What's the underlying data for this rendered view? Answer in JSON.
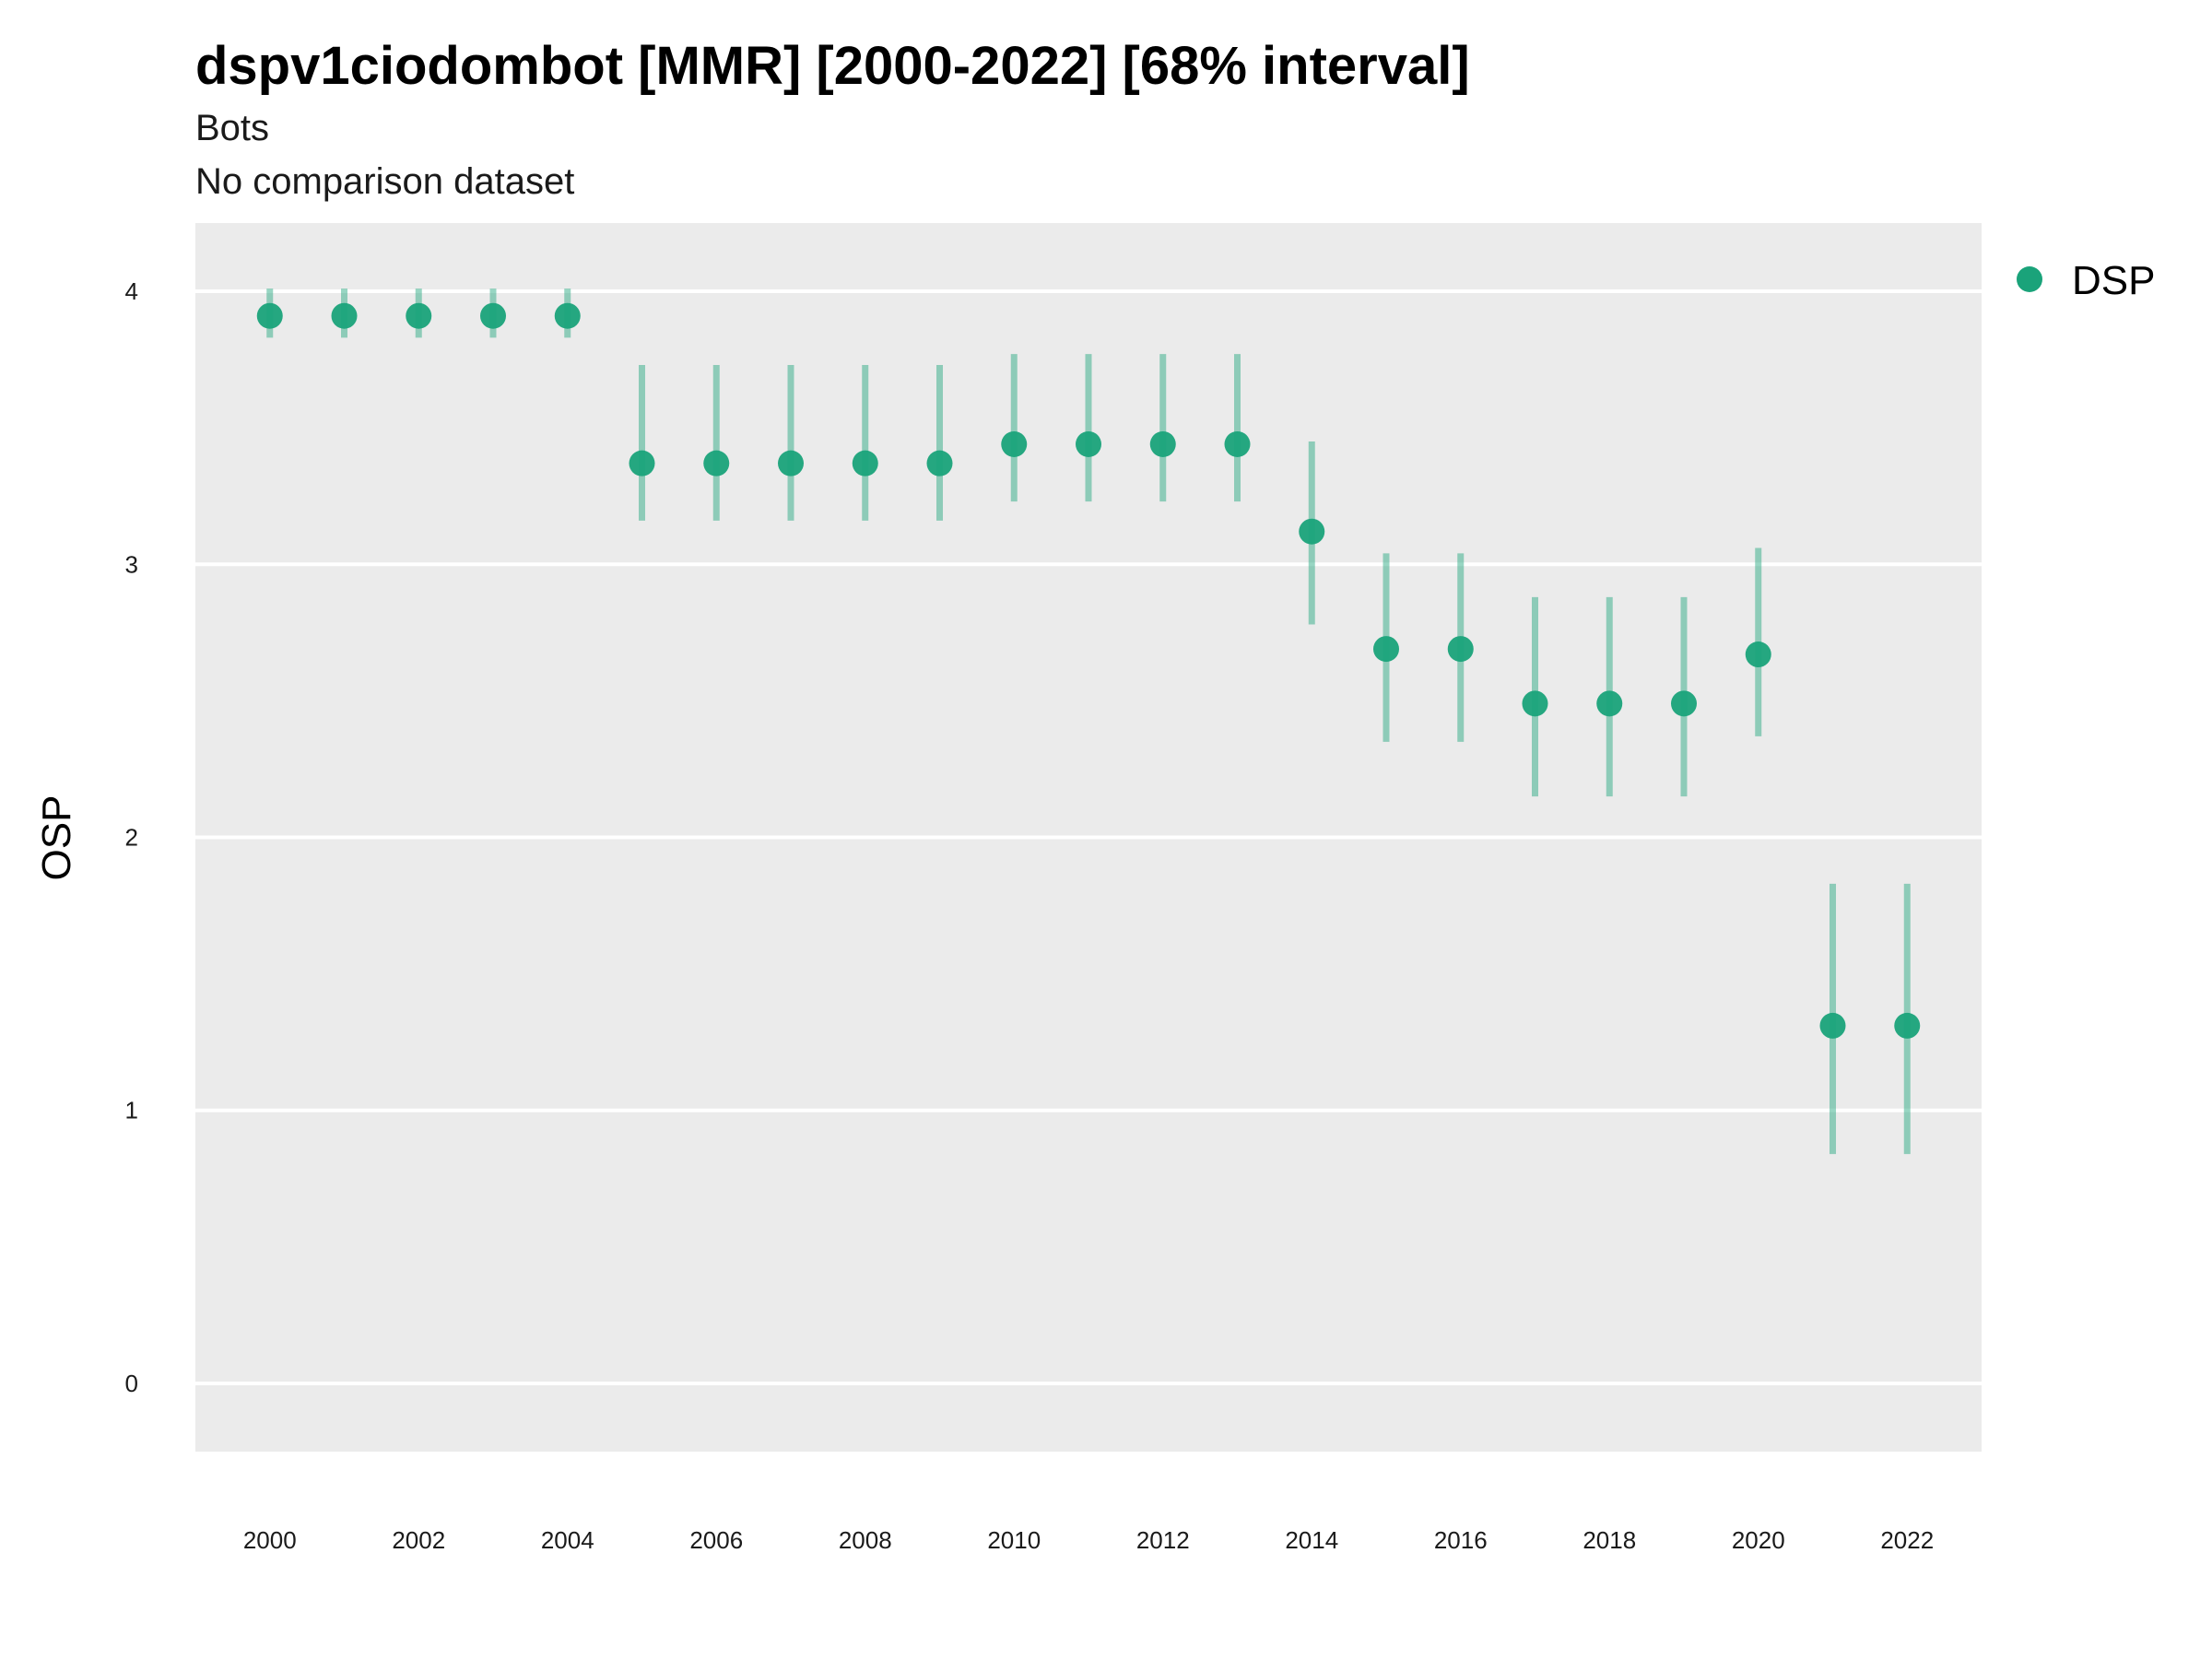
{
  "chart_data": {
    "type": "scatter",
    "title": "dspv1ciodombot [MMR] [2000-2022] [68% interval]",
    "subtitle": "Bots",
    "caption": "No comparison dataset",
    "xlabel": "",
    "ylabel": "OSP",
    "xlim": [
      1999,
      2023
    ],
    "ylim": [
      -0.25,
      4.25
    ],
    "x_ticks": [
      2000,
      2002,
      2004,
      2006,
      2008,
      2010,
      2012,
      2014,
      2016,
      2018,
      2020,
      2022
    ],
    "y_ticks": [
      0,
      1,
      2,
      3,
      4
    ],
    "grid": true,
    "legend": "right",
    "series": [
      {
        "name": "DSP",
        "color": "#1aa37a",
        "x": [
          2000,
          2001,
          2002,
          2003,
          2004,
          2005,
          2006,
          2007,
          2008,
          2009,
          2010,
          2011,
          2012,
          2013,
          2014,
          2015,
          2016,
          2017,
          2018,
          2019,
          2020,
          2021,
          2022
        ],
        "y": [
          3.91,
          3.91,
          3.91,
          3.91,
          3.91,
          3.37,
          3.37,
          3.37,
          3.37,
          3.37,
          3.44,
          3.44,
          3.44,
          3.44,
          3.12,
          2.69,
          2.69,
          2.49,
          2.49,
          2.49,
          2.67,
          1.31,
          1.31
        ],
        "lower": [
          3.83,
          3.83,
          3.83,
          3.83,
          3.83,
          3.16,
          3.16,
          3.16,
          3.16,
          3.16,
          3.23,
          3.23,
          3.23,
          3.23,
          2.78,
          2.35,
          2.35,
          2.15,
          2.15,
          2.15,
          2.37,
          0.84,
          0.84
        ],
        "upper": [
          4.01,
          4.01,
          4.01,
          4.01,
          4.01,
          3.73,
          3.73,
          3.73,
          3.73,
          3.73,
          3.77,
          3.77,
          3.77,
          3.77,
          3.45,
          3.04,
          3.04,
          2.88,
          2.88,
          2.88,
          3.06,
          1.83,
          1.83
        ]
      }
    ]
  }
}
